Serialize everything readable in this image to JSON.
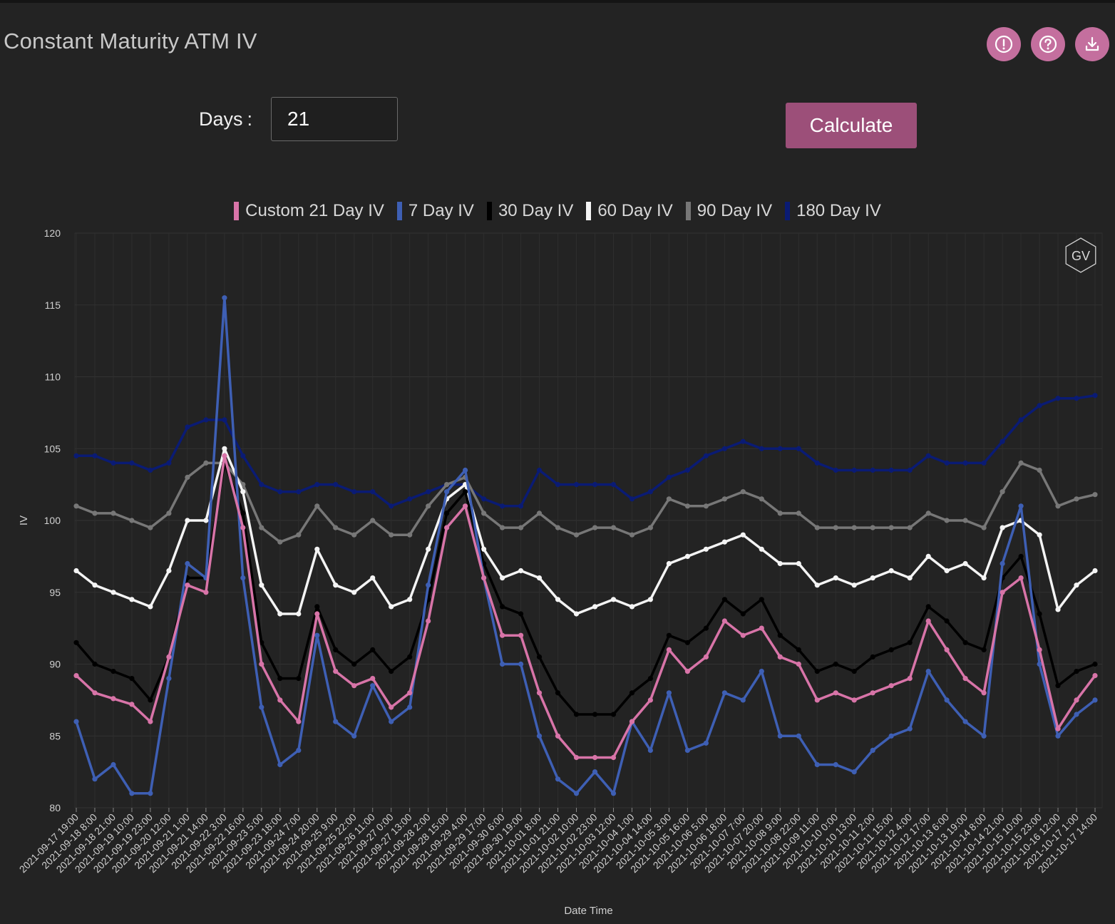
{
  "header": {
    "title": "Constant Maturity ATM IV"
  },
  "controls": {
    "days_label": "Days",
    "days_colon": ":",
    "days_value": "21",
    "calculate_label": "Calculate"
  },
  "toolbar": {
    "icons": [
      "info-icon",
      "help-icon",
      "download-icon"
    ]
  },
  "watermark": "GV",
  "chart_data": {
    "type": "line",
    "xlabel": "Date Time",
    "ylabel": "IV",
    "ylim": [
      80,
      120
    ],
    "yticks": [
      80,
      85,
      90,
      95,
      100,
      105,
      110,
      115,
      120
    ],
    "grid": true,
    "legend_position": "top-center",
    "x_start": "2021-09-17 19:00",
    "x_end": "2021-10-17 14:00",
    "x_step_hours": 13,
    "x_tick_labels": [
      "2021-09-17 19:00",
      "2021-09-18 8:00",
      "2021-09-18 21:00",
      "2021-09-19 10:00",
      "2021-09-19 23:00",
      "2021-09-20 12:00",
      "2021-09-21 1:00",
      "2021-09-21 14:00",
      "2021-09-22 3:00",
      "2021-09-22 16:00",
      "2021-09-23 5:00",
      "2021-09-23 18:00",
      "2021-09-24 7:00",
      "2021-09-24 20:00",
      "2021-09-25 9:00",
      "2021-09-25 22:00",
      "2021-09-26 11:00",
      "2021-09-27 0:00",
      "2021-09-27 13:00",
      "2021-09-28 2:00",
      "2021-09-28 15:00",
      "2021-09-29 4:00",
      "2021-09-29 17:00",
      "2021-09-30 6:00",
      "2021-09-30 19:00",
      "2021-10-01 8:00",
      "2021-10-01 21:00",
      "2021-10-02 10:00",
      "2021-10-02 23:00",
      "2021-10-03 12:00",
      "2021-10-04 1:00",
      "2021-10-04 14:00",
      "2021-10-05 3:00",
      "2021-10-05 16:00",
      "2021-10-06 5:00",
      "2021-10-06 18:00",
      "2021-10-07 7:00",
      "2021-10-07 20:00",
      "2021-10-08 9:00",
      "2021-10-08 22:00",
      "2021-10-09 11:00",
      "2021-10-10 0:00",
      "2021-10-10 13:00",
      "2021-10-11 2:00",
      "2021-10-11 15:00",
      "2021-10-12 4:00",
      "2021-10-12 17:00",
      "2021-10-13 6:00",
      "2021-10-13 19:00",
      "2021-10-14 8:00",
      "2021-10-14 21:00",
      "2021-10-15 10:00",
      "2021-10-15 23:00",
      "2021-10-16 12:00",
      "2021-10-17 1:00",
      "2021-10-17 14:00"
    ],
    "series": [
      {
        "name": "Custom 21 Day IV",
        "color": "#d874a8",
        "values": [
          89.2,
          88.0,
          87.6,
          87.2,
          86.0,
          90.5,
          95.5,
          95.0,
          104.5,
          99.5,
          90.0,
          87.5,
          86.0,
          93.5,
          89.5,
          88.5,
          89.0,
          87.0,
          88.0,
          93.0,
          99.5,
          101.0,
          96.0,
          92.0,
          92.0,
          88.0,
          85.0,
          83.5,
          83.5,
          83.5,
          86.0,
          87.5,
          91.0,
          89.5,
          90.5,
          93.0,
          92.0,
          92.5,
          90.5,
          90.0,
          87.5,
          88.0,
          87.5,
          88.0,
          88.5,
          89.0,
          93.0,
          91.0,
          89.0,
          88.0,
          95.0,
          96.0,
          91.0,
          85.5,
          87.5,
          89.2
        ]
      },
      {
        "name": "7 Day IV",
        "color": "#3e5fb4",
        "values": [
          86.0,
          82.0,
          83.0,
          81.0,
          81.0,
          89.0,
          97.0,
          96.0,
          115.5,
          96.0,
          87.0,
          83.0,
          84.0,
          92.0,
          86.0,
          85.0,
          88.5,
          86.0,
          87.0,
          95.5,
          102.0,
          103.5,
          96.0,
          90.0,
          90.0,
          85.0,
          82.0,
          81.0,
          82.5,
          81.0,
          86.0,
          84.0,
          88.0,
          84.0,
          84.5,
          88.0,
          87.5,
          89.5,
          85.0,
          85.0,
          83.0,
          83.0,
          82.5,
          84.0,
          85.0,
          85.5,
          89.5,
          87.5,
          86.0,
          85.0,
          97.0,
          101.0,
          90.0,
          85.0,
          86.5,
          87.5
        ]
      },
      {
        "name": "30 Day IV",
        "color": "#000000",
        "values": [
          91.5,
          90.0,
          89.5,
          89.0,
          87.5,
          90.5,
          96.0,
          96.0,
          104.0,
          100.5,
          91.5,
          89.0,
          89.0,
          94.0,
          91.0,
          90.0,
          91.0,
          89.5,
          90.5,
          94.5,
          100.5,
          102.0,
          97.0,
          94.0,
          93.5,
          90.5,
          88.0,
          86.5,
          86.5,
          86.5,
          88.0,
          89.0,
          92.0,
          91.5,
          92.5,
          94.5,
          93.5,
          94.5,
          92.0,
          91.0,
          89.5,
          90.0,
          89.5,
          90.5,
          91.0,
          91.5,
          94.0,
          93.0,
          91.5,
          91.0,
          96.0,
          97.5,
          93.5,
          88.5,
          89.5,
          90.0
        ]
      },
      {
        "name": "60 Day IV",
        "color": "#f4f4f4",
        "values": [
          96.5,
          95.5,
          95.0,
          94.5,
          94.0,
          96.5,
          100.0,
          100.0,
          105.0,
          102.0,
          95.5,
          93.5,
          93.5,
          98.0,
          95.5,
          95.0,
          96.0,
          94.0,
          94.5,
          98.0,
          101.5,
          102.5,
          98.0,
          96.0,
          96.5,
          96.0,
          94.5,
          93.5,
          94.0,
          94.5,
          94.0,
          94.5,
          97.0,
          97.5,
          98.0,
          98.5,
          99.0,
          98.0,
          97.0,
          97.0,
          95.5,
          96.0,
          95.5,
          96.0,
          96.5,
          96.0,
          97.5,
          96.5,
          97.0,
          96.0,
          99.5,
          100.0,
          99.0,
          93.8,
          95.5,
          96.5
        ]
      },
      {
        "name": "90 Day IV",
        "color": "#777777",
        "values": [
          101.0,
          100.5,
          100.5,
          100.0,
          99.5,
          100.5,
          103.0,
          104.0,
          104.0,
          102.5,
          99.5,
          98.5,
          99.0,
          101.0,
          99.5,
          99.0,
          100.0,
          99.0,
          99.0,
          101.0,
          102.5,
          103.0,
          100.5,
          99.5,
          99.5,
          100.5,
          99.5,
          99.0,
          99.5,
          99.5,
          99.0,
          99.5,
          101.5,
          101.0,
          101.0,
          101.5,
          102.0,
          101.5,
          100.5,
          100.5,
          99.5,
          99.5,
          99.5,
          99.5,
          99.5,
          99.5,
          100.5,
          100.0,
          100.0,
          99.5,
          102.0,
          104.0,
          103.5,
          101.0,
          101.5,
          101.8
        ]
      },
      {
        "name": "180 Day IV",
        "color": "#0a1b74",
        "values": [
          104.5,
          104.5,
          104.0,
          104.0,
          103.5,
          104.0,
          106.5,
          107.0,
          107.0,
          104.5,
          102.5,
          102.0,
          102.0,
          102.5,
          102.5,
          102.0,
          102.0,
          101.0,
          101.5,
          102.0,
          102.5,
          102.5,
          101.5,
          101.0,
          101.0,
          103.5,
          102.5,
          102.5,
          102.5,
          102.5,
          101.5,
          102.0,
          103.0,
          103.5,
          104.5,
          105.0,
          105.5,
          105.0,
          105.0,
          105.0,
          104.0,
          103.5,
          103.5,
          103.5,
          103.5,
          103.5,
          104.5,
          104.0,
          104.0,
          104.0,
          105.5,
          107.0,
          108.0,
          108.5,
          108.5,
          108.7
        ]
      }
    ]
  }
}
